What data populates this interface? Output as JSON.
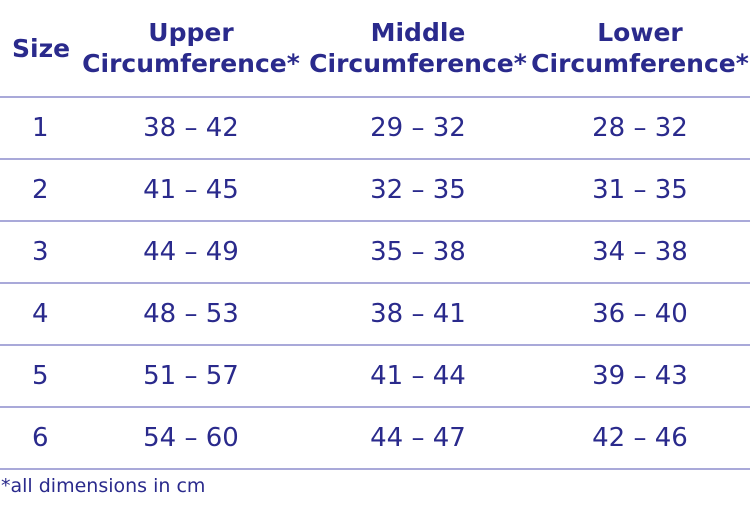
{
  "table": {
    "headers": {
      "size": "Size",
      "upper_line1": "Upper",
      "upper_line2": "Circumference*",
      "middle_line1": "Middle",
      "middle_line2": "Circumference*",
      "lower_line1": "Lower",
      "lower_line2": "Circumference*"
    },
    "rows": [
      {
        "size": "1",
        "upper": "38 – 42",
        "middle": "29 – 32",
        "lower": "28 – 32"
      },
      {
        "size": "2",
        "upper": "41 – 45",
        "middle": "32 – 35",
        "lower": "31 – 35"
      },
      {
        "size": "3",
        "upper": "44 – 49",
        "middle": "35 – 38",
        "lower": "34 – 38"
      },
      {
        "size": "4",
        "upper": "48 – 53",
        "middle": "38 – 41",
        "lower": "36 – 40"
      },
      {
        "size": "5",
        "upper": "51 – 57",
        "middle": "41 – 44",
        "lower": "39 – 43"
      },
      {
        "size": "6",
        "upper": "54 – 60",
        "middle": "44 – 47",
        "lower": "42 – 46"
      }
    ]
  },
  "footnote": "*all dimensions in cm",
  "colors": {
    "text": "#2a2a8c",
    "rule": "#a9a9d9",
    "background": "#ffffff"
  }
}
